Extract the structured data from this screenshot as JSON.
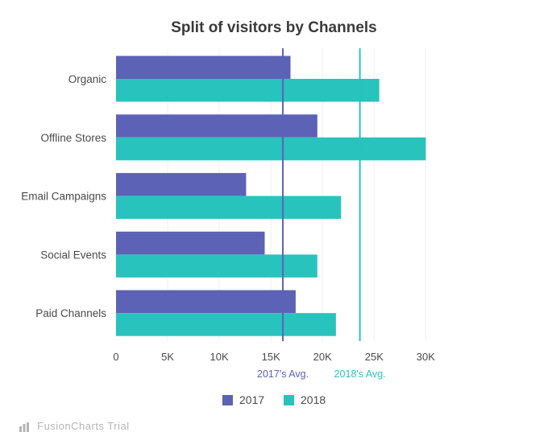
{
  "chart_data": {
    "type": "bar",
    "orientation": "horizontal",
    "title": "Split of visitors by Channels",
    "categories": [
      "Organic",
      "Offline Stores",
      "Email Campaigns",
      "Social Events",
      "Paid Channels"
    ],
    "series": [
      {
        "name": "2017",
        "color": "#5c62b5",
        "values": [
          16900,
          19500,
          12600,
          14400,
          17400
        ]
      },
      {
        "name": "2018",
        "color": "#29c3be",
        "values": [
          25500,
          30000,
          21800,
          19500,
          21300
        ]
      }
    ],
    "xlim": [
      0,
      32000
    ],
    "x_ticks": [
      0,
      5000,
      10000,
      15000,
      20000,
      25000,
      30000
    ],
    "x_tick_labels": [
      "0",
      "5K",
      "10K",
      "15K",
      "20K",
      "25K",
      "30K"
    ],
    "reference_lines": [
      {
        "label": "2017's Avg.",
        "value": 16160,
        "color": "#5c62b5"
      },
      {
        "label": "2018's Avg.",
        "value": 23620,
        "color": "#29c3be"
      }
    ],
    "grid": true,
    "legend_position": "bottom-center"
  },
  "watermark": {
    "text": "FusionCharts Trial"
  }
}
